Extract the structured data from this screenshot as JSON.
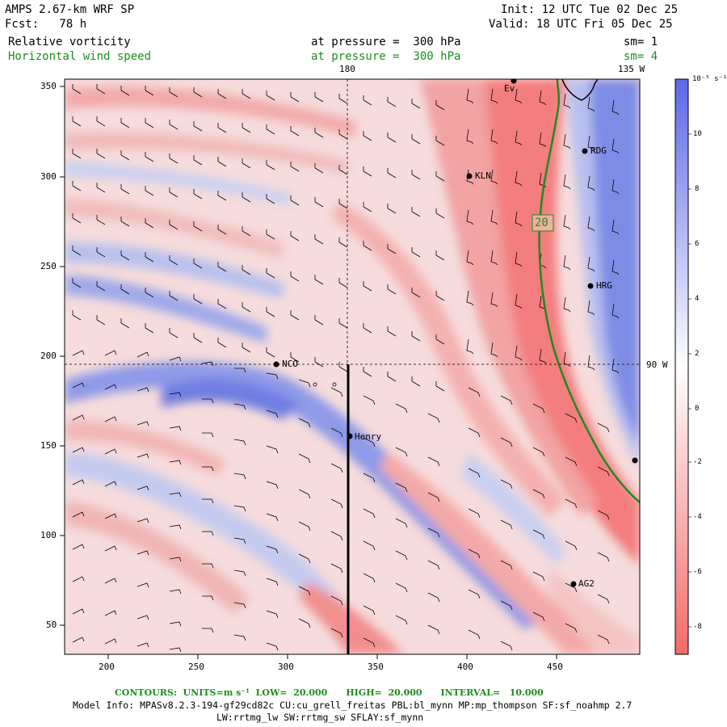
{
  "header": {
    "model": "AMPS 2.67-km WRF SP",
    "forecast": "Fcst:   78 h",
    "init": "Init: 12 UTC Tue 02 Dec 25",
    "valid": "Valid: 18 UTC Fri 05 Dec 25",
    "field1": "Relative vorticity",
    "field1_level": "at pressure =  300 hPa",
    "field1_sm": "sm= 1",
    "field2": "Horizontal wind speed",
    "field2_level": "at pressure =  300 hPa",
    "field2_sm": "sm= 4"
  },
  "map": {
    "lon_labels": {
      "top_180": "180",
      "top_135w": "135 W",
      "right_90w": "90 W"
    },
    "x_ticks": [
      "200",
      "250",
      "300",
      "350",
      "400",
      "450"
    ],
    "y_ticks": [
      "350",
      "300",
      "250",
      "200",
      "150",
      "100",
      "50"
    ],
    "stations": [
      {
        "name": "Ev",
        "cls": "st-ev"
      },
      {
        "name": "RDG",
        "cls": "st-rdg"
      },
      {
        "name": "KLN",
        "cls": "st-kln"
      },
      {
        "name": "HRG",
        "cls": "st-hrg"
      },
      {
        "name": "NCO",
        "cls": "st-nco"
      },
      {
        "name": "Henry",
        "cls": "st-henry"
      },
      {
        "name": "AG2",
        "cls": "st-ag2"
      }
    ],
    "contour_label": "20"
  },
  "colorbar": {
    "unit": "10⁻⁵ s⁻¹",
    "ticks": [
      "10",
      "8",
      "6",
      "4",
      "2",
      "0",
      "-2",
      "-4",
      "-6",
      "-8"
    ],
    "colors": {
      "strong_pos": "#5b68e8",
      "pos": "#a9b4ea",
      "zero": "#ffffff",
      "neg": "#f3a7a7",
      "strong_neg": "#f46a6a"
    }
  },
  "footer": {
    "contours": "CONTOURS:  UNITS=m s⁻¹  LOW=  20.000      HIGH=  20.000      INTERVAL=   10.000",
    "model_info": "Model Info: MPASv8.2.3-194-gf29cd82c CU:cu_grell_freitas PBL:bl_mynn MP:mp_thompson SF:sf_noahmp 2.7",
    "model_info2": "LW:rrtmg_lw SW:rrtmg_sw SFLAY:sf_mynn"
  }
}
